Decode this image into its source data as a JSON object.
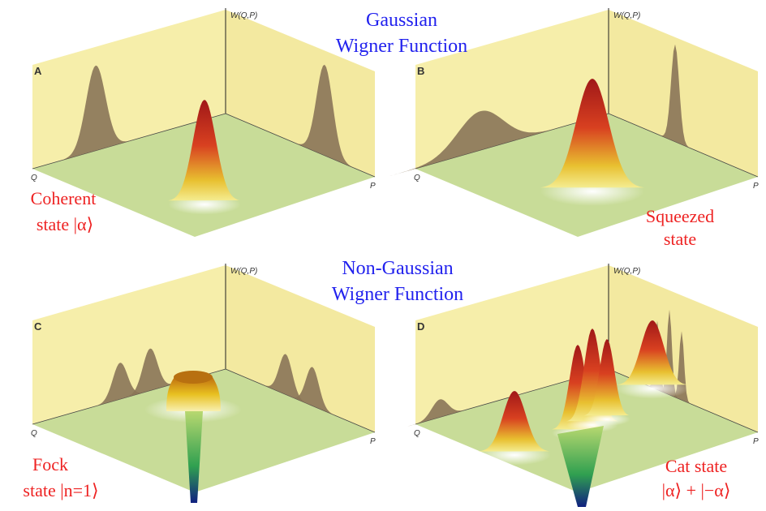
{
  "headings": [
    {
      "lines": [
        "Gaussian",
        "Wigner Function"
      ]
    },
    {
      "lines": [
        "Non-Gaussian",
        "Wigner Function"
      ]
    }
  ],
  "panels": [
    {
      "letter": "A",
      "w_axis": "W(Q,P)",
      "q_axis": "Q",
      "p_axis": "P",
      "caption": [
        "Coherent",
        "state |α⟩"
      ]
    },
    {
      "letter": "B",
      "w_axis": "W(Q,P)",
      "q_axis": "Q",
      "p_axis": "P",
      "caption": [
        "Squeezed",
        "state"
      ]
    },
    {
      "letter": "C",
      "w_axis": "W(Q,P)",
      "q_axis": "Q",
      "p_axis": "P",
      "caption": [
        "Fock",
        "state |n=1⟩"
      ]
    },
    {
      "letter": "D",
      "w_axis": "W(Q,P)",
      "q_axis": "Q",
      "p_axis": "P",
      "caption": [
        "Cat state",
        "|α⟩ + |−α⟩"
      ]
    }
  ]
}
